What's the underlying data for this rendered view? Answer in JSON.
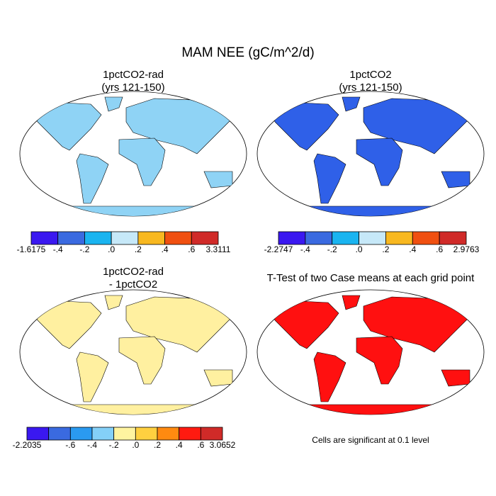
{
  "title": "MAM NEE (gC/m^2/d)",
  "panels": [
    {
      "title": [
        "1pctCO2-rad",
        "(yrs 121-150)"
      ],
      "colorbar": {
        "colors": [
          "#3a18f0",
          "#3a6ae0",
          "#1ab4f0",
          "#c6e8f8",
          "#f8b820",
          "#f05010",
          "#d02a28"
        ],
        "labels": [
          "-1.6175",
          "-.4",
          "-.2",
          ".0",
          ".2",
          ".4",
          ".6",
          "3.3111"
        ]
      }
    },
    {
      "title": [
        "1pctCO2",
        "(yrs 121-150)"
      ],
      "colorbar": {
        "colors": [
          "#3a18f0",
          "#3a6ae0",
          "#1ab4f0",
          "#c6e8f8",
          "#f8b820",
          "#f05010",
          "#d02a28"
        ],
        "labels": [
          "-2.2747",
          "-.4",
          "-.2",
          ".0",
          ".2",
          ".4",
          ".6",
          "2.9763"
        ]
      }
    },
    {
      "title": [
        "1pctCO2-rad",
        "- 1pctCO2"
      ],
      "colorbar": {
        "colors": [
          "#3a18f0",
          "#3a6ae0",
          "#2a9af0",
          "#84d0f8",
          "#fff4a0",
          "#ffd040",
          "#ff8a10",
          "#ff1a10",
          "#d02a28"
        ],
        "labels": [
          "-2.2035",
          null,
          "-.6",
          "-.4",
          "-.2",
          ".0",
          ".2",
          ".4",
          ".6",
          "3.0652"
        ]
      }
    },
    {
      "title": [
        "T-Test of two Case means at each grid point"
      ],
      "note": "Cells are significant at 0.1 level"
    }
  ]
}
